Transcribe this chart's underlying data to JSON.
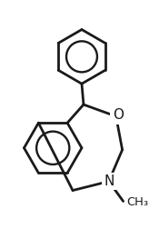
{
  "bg_color": "#ffffff",
  "line_color": "#1a1a1a",
  "line_width": 2.0,
  "font_size": 11,
  "label_O": "O",
  "label_N": "N",
  "label_Me": "CH₃"
}
